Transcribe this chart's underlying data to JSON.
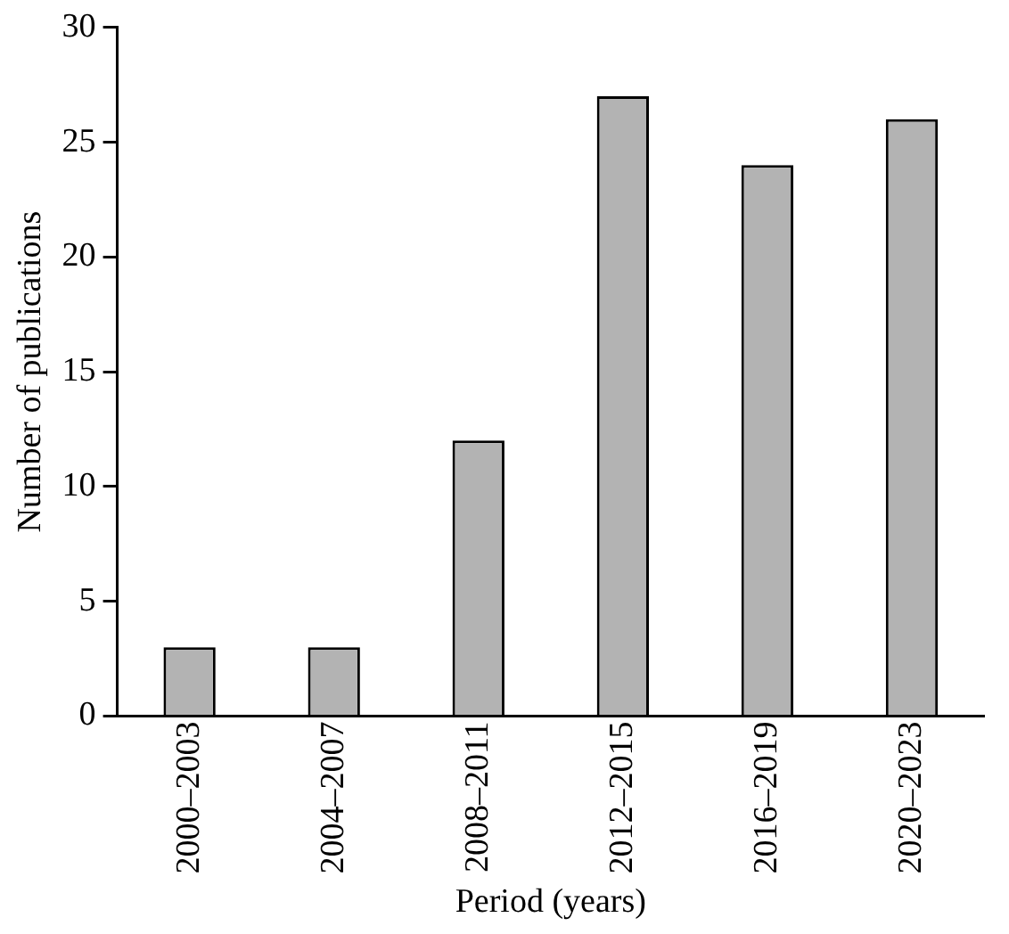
{
  "chart_data": {
    "type": "bar",
    "xlabel": "Period (years)",
    "ylabel": "Number of publications",
    "categories": [
      "2000–2003",
      "2004–2007",
      "2008–2011",
      "2012–2015",
      "2016–2019",
      "2020–2023"
    ],
    "values": [
      3,
      3,
      12,
      27,
      24,
      26
    ],
    "color": "#b3b3b3",
    "ylim": [
      0,
      30
    ],
    "yticks": [
      0,
      5,
      10,
      15,
      20,
      25,
      30
    ],
    "grid": false,
    "legend": false
  }
}
